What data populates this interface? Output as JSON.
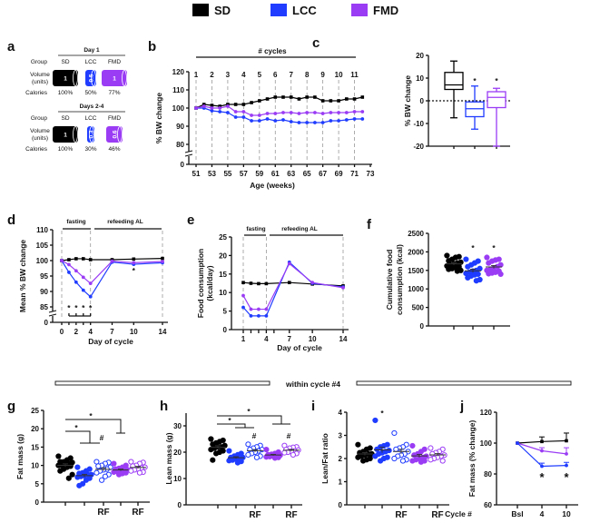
{
  "legend": [
    {
      "label": "SD",
      "color": "#000000"
    },
    {
      "label": "LCC",
      "color": "#1f3cff"
    },
    {
      "label": "FMD",
      "color": "#9b3cf5"
    }
  ],
  "divider": {
    "label": "within cycle #4"
  },
  "chart_data": [
    {
      "panel": "a",
      "type": "table",
      "rows": {
        "group": "Group",
        "volume": [
          "Volume",
          "(units)"
        ],
        "calories": "Calories"
      },
      "sections": [
        {
          "title": "Day 1",
          "groups": [
            "SD",
            "LCC",
            "FMD"
          ],
          "volumes": [
            "1",
            "0.5",
            "1"
          ],
          "calories": [
            "100%",
            "50%",
            "77%"
          ]
        },
        {
          "title": "Days 2-4",
          "groups": [
            "SD",
            "LCC",
            "FMD"
          ],
          "volumes": [
            "1",
            "0.3",
            "0.6"
          ],
          "calories": [
            "100%",
            "30%",
            "46%"
          ]
        }
      ]
    },
    {
      "panel": "b",
      "type": "line",
      "title": "# cycles",
      "cycles": [
        "1",
        "2",
        "3",
        "4",
        "5",
        "6",
        "7",
        "8",
        "9",
        "10",
        "11"
      ],
      "xlabel": "Age (weeks)",
      "ylabel": "% BW change",
      "xticks": [
        51,
        53,
        55,
        57,
        59,
        61,
        63,
        65,
        67,
        69,
        71,
        73
      ],
      "yticks": [
        0,
        80,
        90,
        100,
        110,
        120
      ],
      "ylim": [
        0,
        120
      ],
      "x": [
        51,
        52,
        53,
        54,
        55,
        56,
        57,
        58,
        59,
        60,
        61,
        62,
        63,
        64,
        65,
        66,
        67,
        68,
        69,
        70,
        71,
        72
      ],
      "series": [
        {
          "name": "SD",
          "values": [
            100,
            102,
            101.5,
            101,
            102,
            102,
            102,
            103,
            104,
            105,
            106,
            106,
            106,
            105,
            106,
            106,
            104,
            104,
            104,
            105,
            105,
            106
          ]
        },
        {
          "name": "LCC",
          "values": [
            100,
            100,
            98.5,
            98,
            97.5,
            95,
            95,
            93,
            93,
            94,
            93,
            93.5,
            92.5,
            92,
            92,
            92,
            92,
            93,
            93,
            93.5,
            94,
            94
          ]
        },
        {
          "name": "FMD",
          "values": [
            100,
            101,
            100,
            100,
            101,
            98,
            98,
            96,
            96,
            97,
            97,
            97.5,
            97.5,
            97,
            97.5,
            97.5,
            97,
            97.5,
            97.5,
            97.5,
            98,
            98
          ]
        }
      ]
    },
    {
      "panel": "c",
      "type": "box",
      "ylabel": "% BW change",
      "yticks": [
        -20,
        -10,
        0,
        10,
        20
      ],
      "ylim": [
        -20,
        20
      ],
      "groups": [
        {
          "name": "SD",
          "min": -7.5,
          "q1": 5,
          "median": 7,
          "q3": 12.5,
          "max": 17.5
        },
        {
          "name": "LCC",
          "min": -12.5,
          "q1": -7,
          "median": -3.5,
          "q3": -0.5,
          "max": 6.5
        },
        {
          "name": "FMD",
          "min": -20,
          "q1": -3,
          "median": 1.5,
          "q3": 4,
          "max": 5.5
        }
      ],
      "annotations": [
        "*",
        "*"
      ]
    },
    {
      "panel": "d",
      "type": "line",
      "xlabel": "Day of cycle",
      "ylabel": "Mean % BW change",
      "phases": [
        "fasting",
        "refeeding AL"
      ],
      "x": [
        0,
        1,
        2,
        3,
        4,
        7,
        10,
        14
      ],
      "xticks": [
        0,
        2,
        4,
        7,
        10,
        14
      ],
      "yticks": [
        0,
        85,
        90,
        95,
        100,
        105,
        110
      ],
      "ylim": [
        0,
        110
      ],
      "series": [
        {
          "name": "SD",
          "values": [
            100,
            100.3,
            100.6,
            100.6,
            100.3,
            100.3,
            100.5,
            100.7
          ]
        },
        {
          "name": "LCC",
          "values": [
            100,
            96.2,
            93,
            90.4,
            88.3,
            99.5,
            98.8,
            99.3
          ]
        },
        {
          "name": "FMD",
          "values": [
            100,
            98.7,
            96.7,
            94.6,
            92.6,
            99.8,
            99.3,
            99.7
          ]
        }
      ],
      "annotations": [
        "*",
        "*",
        "*",
        "*",
        "*"
      ]
    },
    {
      "panel": "e",
      "type": "line",
      "xlabel": "Day of cycle",
      "ylabel": [
        "Food consumption",
        "(kcal/day)"
      ],
      "phases": [
        "fasting",
        "refeeding AL"
      ],
      "x": [
        1,
        2,
        3,
        4,
        7,
        10,
        14
      ],
      "xticks": [
        1,
        4,
        7,
        10,
        14
      ],
      "yticks": [
        0,
        5,
        10,
        15,
        20,
        25
      ],
      "ylim": [
        0,
        25
      ],
      "series": [
        {
          "name": "SD",
          "values": [
            12.7,
            12.5,
            12.4,
            12.4,
            12.7,
            12.3,
            11.8
          ]
        },
        {
          "name": "LCC",
          "values": [
            6,
            3.7,
            3.7,
            3.7,
            18.2,
            12.5,
            11.5
          ]
        },
        {
          "name": "FMD",
          "values": [
            9.2,
            5.5,
            5.5,
            5.5,
            17.8,
            12.7,
            11.3
          ]
        }
      ]
    },
    {
      "panel": "f",
      "type": "scatter",
      "ylabel": [
        "Cumulative food",
        "consumption (kcal)"
      ],
      "yticks": [
        0,
        500,
        1000,
        1500,
        2000,
        2500
      ],
      "ylim": [
        0,
        2500
      ],
      "xlabels": [
        "",
        "",
        ""
      ],
      "groups": [
        {
          "name": "SD",
          "refed": false,
          "values": [
            1900,
            1870,
            1850,
            1800,
            1760,
            1720,
            1700,
            1680,
            1650,
            1620,
            1600,
            1580,
            1550,
            1530,
            1500,
            1480
          ]
        },
        {
          "name": "LCC",
          "refed": false,
          "values": [
            1800,
            1750,
            1700,
            1650,
            1600,
            1550,
            1500,
            1480,
            1450,
            1420,
            1400,
            1380,
            1350,
            1300,
            1250,
            1220
          ]
        },
        {
          "name": "FMD",
          "refed": false,
          "values": [
            1850,
            1800,
            1780,
            1750,
            1700,
            1650,
            1600,
            1560,
            1520,
            1500,
            1480,
            1450,
            1430,
            1410,
            1400
          ]
        }
      ],
      "annotations": [
        "*",
        "*"
      ]
    },
    {
      "panel": "g",
      "type": "scatter",
      "ylabel": "Fat  mass (g)",
      "yticks": [
        0,
        5,
        10,
        15,
        20,
        25
      ],
      "ylim": [
        0,
        25
      ],
      "xlabels": [
        "",
        "",
        "RF",
        "",
        "RF"
      ],
      "groups": [
        {
          "name": "SD",
          "refed": false,
          "values": [
            12.5,
            12,
            11.5,
            11,
            11,
            10.8,
            10.5,
            10.3,
            10,
            10,
            9.8,
            9.5,
            9,
            8.5,
            7.5,
            6.5
          ]
        },
        {
          "name": "LCC",
          "refed": false,
          "values": [
            9.5,
            9,
            8.5,
            8,
            7.8,
            7.5,
            7.5,
            7.2,
            7,
            6.8,
            6.5,
            6,
            5,
            4.5
          ]
        },
        {
          "name": "LCC",
          "refed": true,
          "values": [
            11,
            10.8,
            10.5,
            10,
            9.8,
            9.5,
            9,
            8.8,
            8.5,
            8,
            7.5,
            7,
            6
          ]
        },
        {
          "name": "FMD",
          "refed": false,
          "values": [
            10.5,
            10,
            9.5,
            9.2,
            9,
            8.8,
            8.6,
            8.5,
            8.3,
            8.2,
            8,
            7.8,
            7.5
          ]
        },
        {
          "name": "FMD",
          "refed": true,
          "values": [
            11,
            10.8,
            10.5,
            10,
            9.8,
            9.5,
            9.3,
            9,
            8.8,
            8.5,
            8.2,
            8
          ]
        }
      ],
      "annotations": [
        "*",
        "*",
        "#"
      ]
    },
    {
      "panel": "h",
      "type": "scatter",
      "ylabel": "Lean mass (g)",
      "yticks": [
        0,
        10,
        20,
        30
      ],
      "ylim": [
        0,
        35
      ],
      "xlabels": [
        "",
        "",
        "RF",
        "",
        "RF"
      ],
      "groups": [
        {
          "name": "SD",
          "refed": false,
          "values": [
            25,
            24.5,
            24,
            23.5,
            23,
            22.5,
            22,
            22,
            21.5,
            21,
            20.5,
            20,
            19.5,
            17
          ]
        },
        {
          "name": "LCC",
          "refed": false,
          "values": [
            20.5,
            19.5,
            19,
            18.5,
            18,
            18,
            17.5,
            17.5,
            17,
            16.8,
            16.5,
            16
          ]
        },
        {
          "name": "LCC",
          "refed": true,
          "values": [
            23,
            22.5,
            22,
            21.5,
            21,
            21,
            20.5,
            20,
            19.5,
            19,
            18.5,
            18
          ]
        },
        {
          "name": "FMD",
          "refed": false,
          "values": [
            21,
            20,
            19.5,
            19.2,
            19,
            18.8,
            18.6,
            18.5,
            18.3,
            18.2,
            18,
            17.8
          ]
        },
        {
          "name": "FMD",
          "refed": true,
          "values": [
            22.5,
            22,
            21.8,
            21.5,
            21,
            20.8,
            20.5,
            20.3,
            20,
            19.8,
            19.5,
            19
          ]
        }
      ],
      "annotations": [
        "*",
        "*",
        "#",
        "#"
      ]
    },
    {
      "panel": "i",
      "type": "scatter",
      "ylabel": "Lean/Fat ratio",
      "yticks": [
        0,
        1,
        2,
        3,
        4
      ],
      "ylim": [
        0,
        4
      ],
      "xlabels": [
        "",
        "",
        "RF",
        "",
        "RF"
      ],
      "groups": [
        {
          "name": "SD",
          "refed": false,
          "values": [
            2.6,
            2.45,
            2.4,
            2.3,
            2.25,
            2.2,
            2.2,
            2.15,
            2.1,
            2.05,
            2.0,
            1.95,
            1.9
          ]
        },
        {
          "name": "LCC",
          "refed": false,
          "values": [
            3.65,
            2.6,
            2.55,
            2.5,
            2.4,
            2.35,
            2.3,
            2.25,
            2.2,
            2.1,
            2.05,
            2.0,
            1.9
          ]
        },
        {
          "name": "LCC",
          "refed": true,
          "values": [
            3.1,
            2.6,
            2.5,
            2.45,
            2.4,
            2.3,
            2.2,
            2.15,
            2.1,
            2.0,
            1.95,
            1.9
          ]
        },
        {
          "name": "FMD",
          "refed": false,
          "values": [
            2.55,
            2.4,
            2.3,
            2.2,
            2.15,
            2.1,
            2.05,
            2.0,
            1.95,
            1.9,
            1.9,
            1.85
          ]
        },
        {
          "name": "FMD",
          "refed": true,
          "values": [
            2.45,
            2.4,
            2.3,
            2.25,
            2.2,
            2.15,
            2.1,
            2.05,
            2.0,
            1.95,
            1.9
          ]
        }
      ],
      "annotations": [
        "*"
      ]
    },
    {
      "panel": "j",
      "type": "line",
      "xlabel": "Cycle #",
      "ylabel": "Fat  mass (% change)",
      "x": [
        "Bsl",
        "4",
        "10"
      ],
      "yticks": [
        60,
        80,
        100,
        120
      ],
      "ylim": [
        60,
        120
      ],
      "series": [
        {
          "name": "SD",
          "values": [
            100,
            101,
            101.5
          ],
          "errors": [
            0,
            3,
            5
          ]
        },
        {
          "name": "FMD",
          "values": [
            100,
            95,
            93
          ],
          "errors": [
            0,
            2,
            4
          ]
        },
        {
          "name": "LCC",
          "values": [
            100,
            85,
            85.5
          ],
          "errors": [
            0,
            2,
            2
          ]
        }
      ],
      "annotations": [
        "*",
        "*"
      ]
    }
  ]
}
